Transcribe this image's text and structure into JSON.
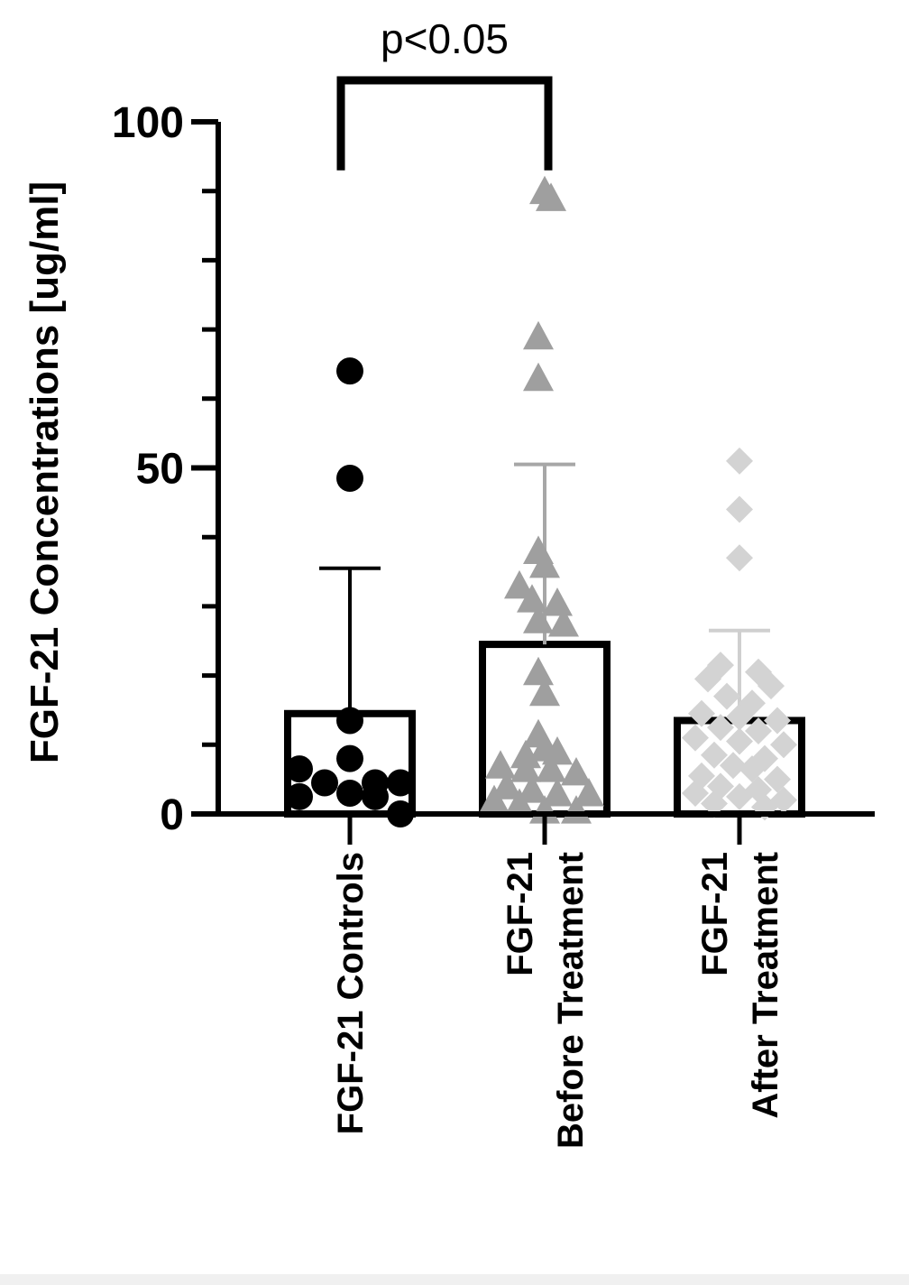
{
  "chart_data": {
    "type": "bar",
    "xlabel": "",
    "ylabel": "FGF-21 Concentrations [ug/ml]",
    "ylim": [
      0,
      100
    ],
    "yticks": [
      "0",
      "50",
      "100"
    ],
    "categories": [
      [
        "FGF-21 Controls"
      ],
      [
        "FGF-21",
        "Before Treatment"
      ],
      [
        "FGF-21",
        "After Treatment"
      ]
    ],
    "bars": [
      {
        "mean": 14.5,
        "sd_upper": 35.5,
        "outline_color": "#000000",
        "error_color": "#000000"
      },
      {
        "mean": 24.5,
        "sd_upper": 50.5,
        "outline_color": "#000000",
        "error_color": "#a7a7a7"
      },
      {
        "mean": 13.5,
        "sd_upper": 26.5,
        "outline_color": "#000000",
        "error_color": "#cfcfcf"
      }
    ],
    "points": [
      {
        "marker": "circle",
        "color": "#000000",
        "points": [
          [
            0.0,
            64
          ],
          [
            0.0,
            48.5
          ],
          [
            0.0,
            13.5
          ],
          [
            0.0,
            8
          ],
          [
            -0.8,
            6.5
          ],
          [
            -0.4,
            4.5
          ],
          [
            0.4,
            4.5
          ],
          [
            0.8,
            4.5
          ],
          [
            0.0,
            3
          ],
          [
            -0.8,
            2.5
          ],
          [
            0.4,
            2.5
          ],
          [
            0.8,
            0
          ]
        ]
      },
      {
        "marker": "triangle",
        "color": "#9f9f9f",
        "points": [
          [
            0.0,
            90
          ],
          [
            0.1,
            89
          ],
          [
            -0.1,
            69
          ],
          [
            -0.1,
            63
          ],
          [
            -0.1,
            38
          ],
          [
            0.0,
            36
          ],
          [
            -0.4,
            33
          ],
          [
            -0.2,
            31
          ],
          [
            0.2,
            30.5
          ],
          [
            -0.1,
            28
          ],
          [
            0.3,
            27.5
          ],
          [
            -0.1,
            20.5
          ],
          [
            0.0,
            17.5
          ],
          [
            -0.1,
            11.5
          ],
          [
            0.0,
            9.5
          ],
          [
            0.2,
            9
          ],
          [
            -0.3,
            8.5
          ],
          [
            -0.7,
            7
          ],
          [
            -0.3,
            6.5
          ],
          [
            0.1,
            6.5
          ],
          [
            0.5,
            6
          ],
          [
            -0.6,
            4
          ],
          [
            -0.2,
            3.5
          ],
          [
            0.2,
            3
          ],
          [
            0.7,
            3
          ],
          [
            -0.8,
            2
          ],
          [
            -0.4,
            1.5
          ],
          [
            0.0,
            0.5
          ],
          [
            0.5,
            0.5
          ]
        ]
      },
      {
        "marker": "diamond",
        "color": "#d3d3d3",
        "points": [
          [
            0.0,
            51
          ],
          [
            0.0,
            44
          ],
          [
            0.0,
            37
          ],
          [
            -0.3,
            21.5
          ],
          [
            0.3,
            20.5
          ],
          [
            -0.5,
            19.5
          ],
          [
            0.5,
            18.5
          ],
          [
            -0.2,
            17
          ],
          [
            0.2,
            16
          ],
          [
            -0.6,
            14.5
          ],
          [
            0.0,
            14
          ],
          [
            0.6,
            13.5
          ],
          [
            -0.3,
            12.5
          ],
          [
            0.3,
            12
          ],
          [
            -0.7,
            11
          ],
          [
            0.0,
            10.5
          ],
          [
            0.7,
            10
          ],
          [
            -0.4,
            8.5
          ],
          [
            0.4,
            8
          ],
          [
            -0.1,
            7
          ],
          [
            0.2,
            6.5
          ],
          [
            -0.6,
            5.5
          ],
          [
            0.6,
            5
          ],
          [
            -0.3,
            4
          ],
          [
            0.3,
            3.5
          ],
          [
            -0.7,
            3
          ],
          [
            0.0,
            2.5
          ],
          [
            0.7,
            2
          ],
          [
            -0.4,
            1.5
          ],
          [
            0.4,
            1
          ]
        ]
      }
    ],
    "significance": {
      "label": "p<0.05",
      "from_category": 0,
      "to_category": 1,
      "y_top": 106,
      "y_bottom": 93
    }
  }
}
